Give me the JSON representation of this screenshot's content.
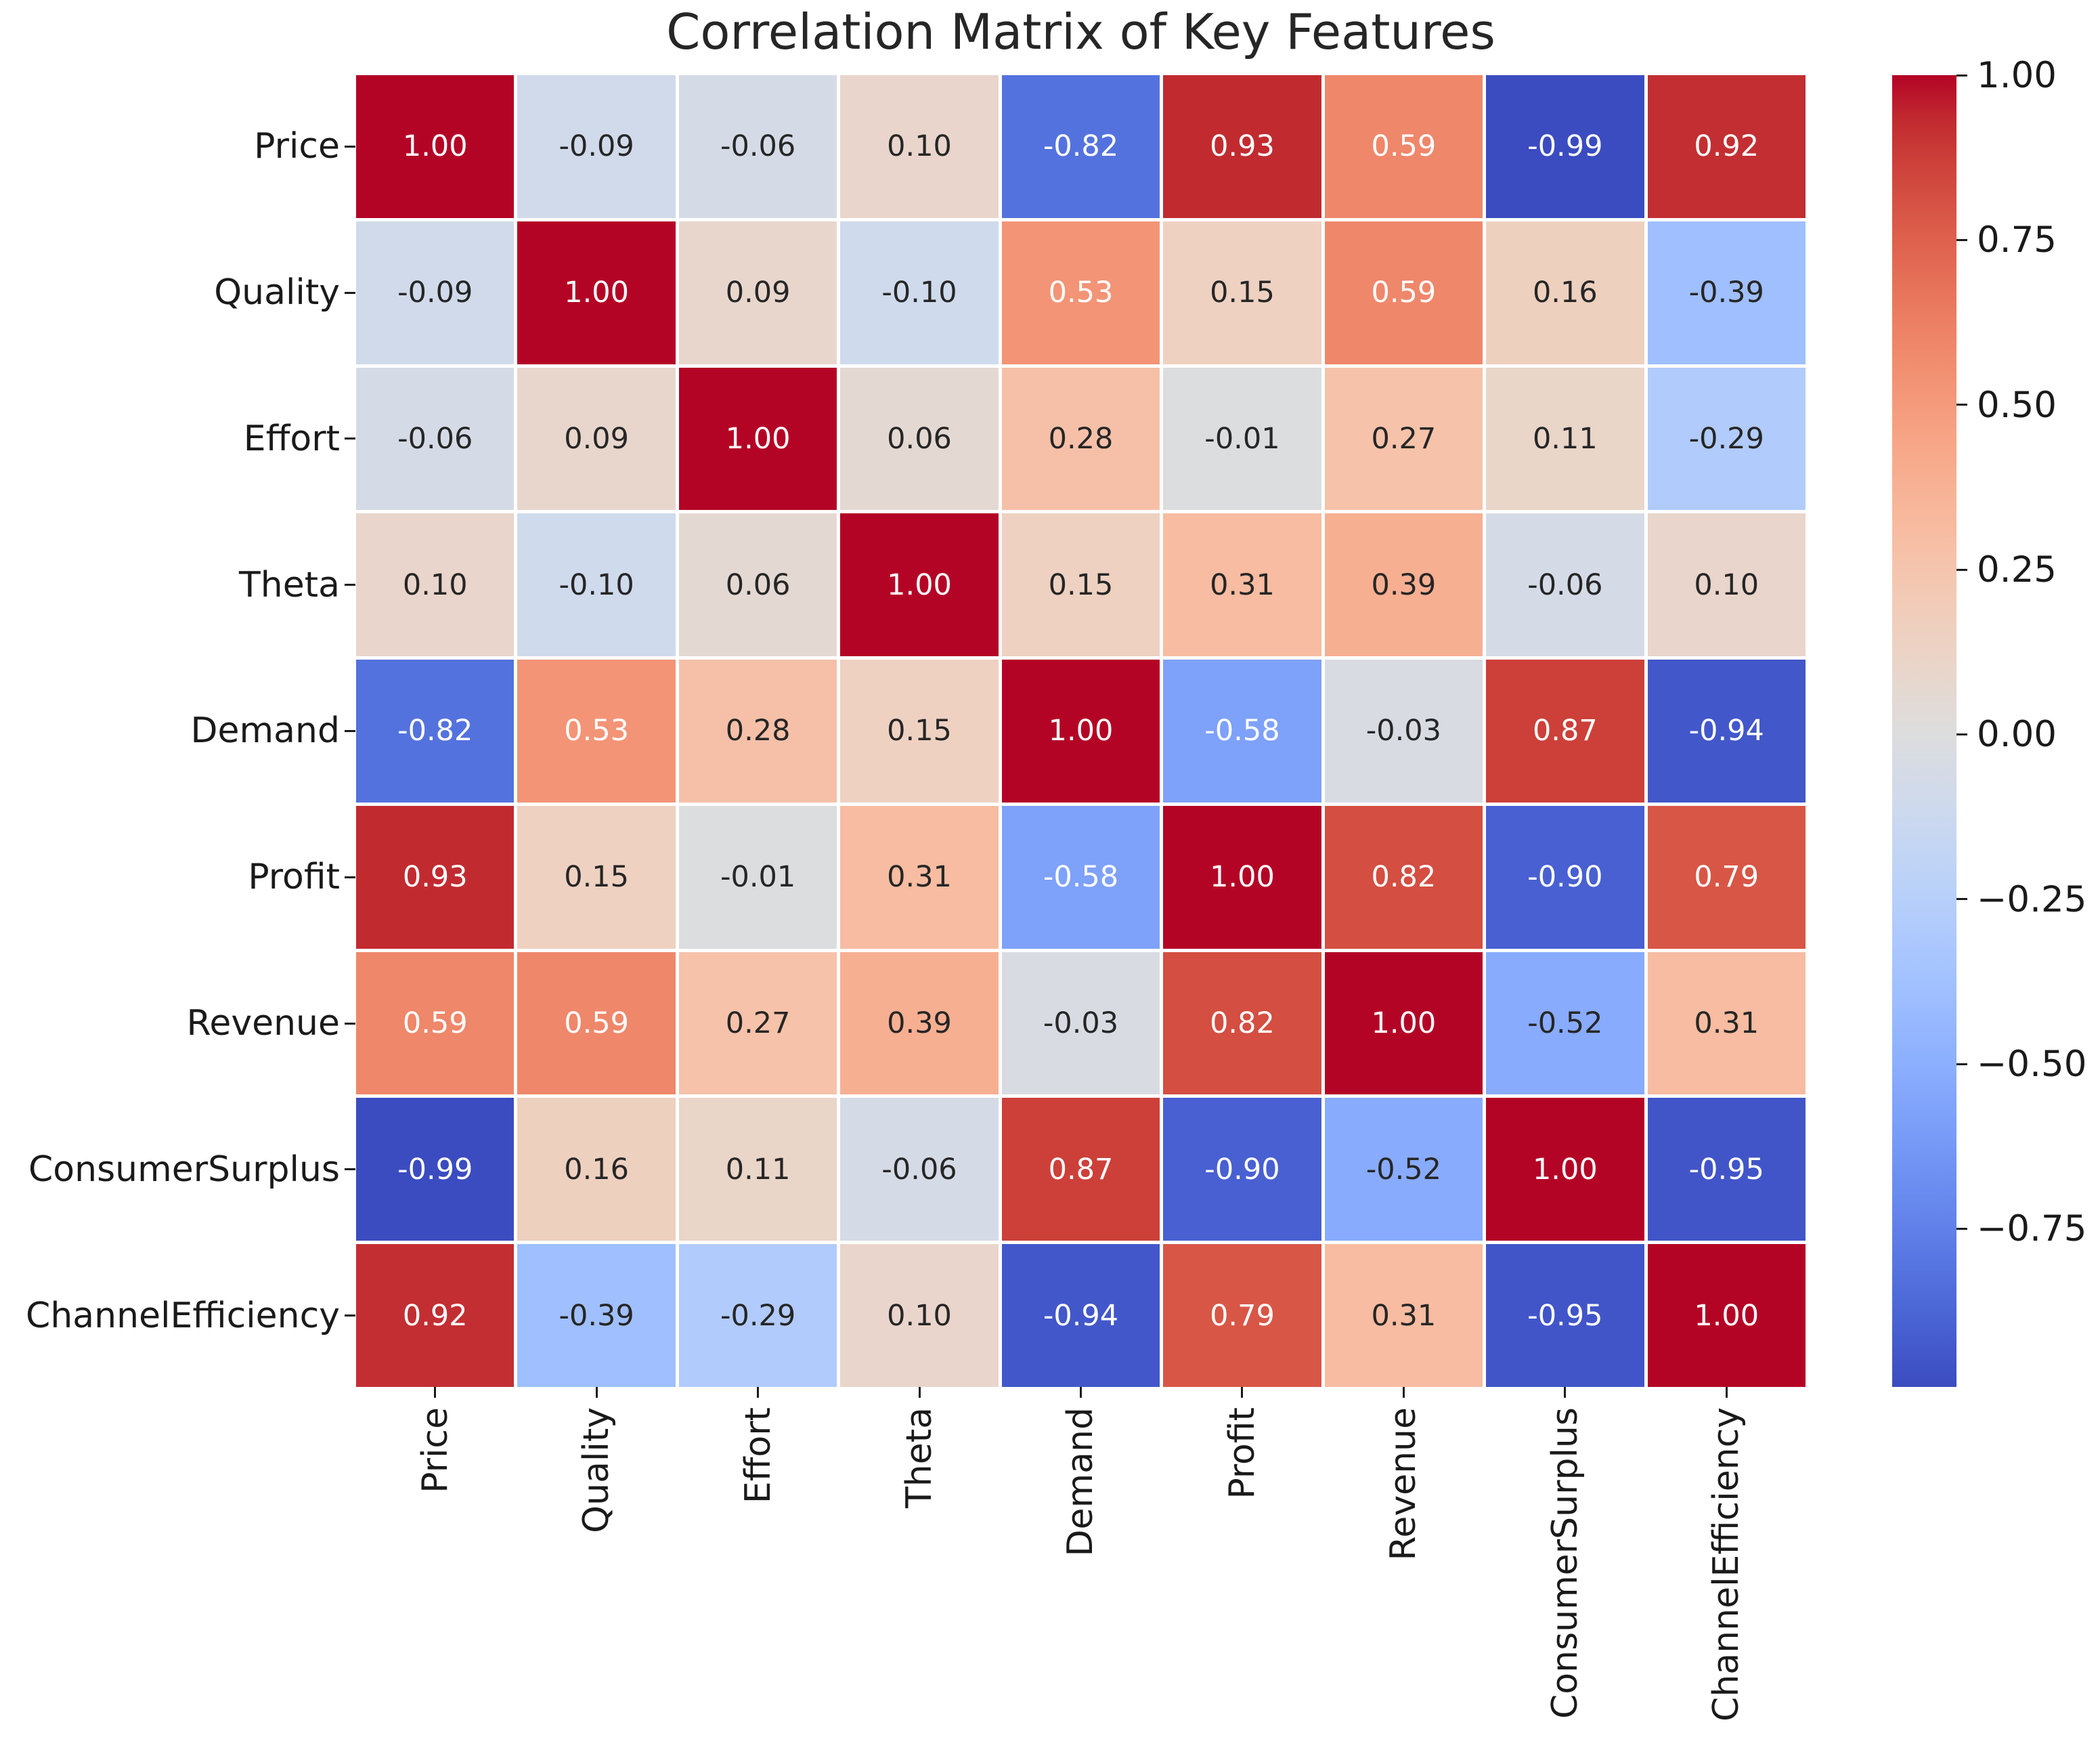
{
  "title": "Correlation Matrix of Key Features",
  "chart_data": {
    "type": "heatmap",
    "title": "Correlation Matrix of Key Features",
    "categories": [
      "Price",
      "Quality",
      "Effort",
      "Theta",
      "Demand",
      "Profit",
      "Revenue",
      "ConsumerSurplus",
      "ChannelEfficiency"
    ],
    "matrix": [
      [
        1.0,
        -0.09,
        -0.06,
        0.1,
        -0.82,
        0.93,
        0.59,
        -0.99,
        0.92
      ],
      [
        -0.09,
        1.0,
        0.09,
        -0.1,
        0.53,
        0.15,
        0.59,
        0.16,
        -0.39
      ],
      [
        -0.06,
        0.09,
        1.0,
        0.06,
        0.28,
        -0.01,
        0.27,
        0.11,
        -0.29
      ],
      [
        0.1,
        -0.1,
        0.06,
        1.0,
        0.15,
        0.31,
        0.39,
        -0.06,
        0.1
      ],
      [
        -0.82,
        0.53,
        0.28,
        0.15,
        1.0,
        -0.58,
        -0.03,
        0.87,
        -0.94
      ],
      [
        0.93,
        0.15,
        -0.01,
        0.31,
        -0.58,
        1.0,
        0.82,
        -0.9,
        0.79
      ],
      [
        0.59,
        0.59,
        0.27,
        0.39,
        -0.03,
        0.82,
        1.0,
        -0.52,
        0.31
      ],
      [
        -0.99,
        0.16,
        0.11,
        -0.06,
        0.87,
        -0.9,
        -0.52,
        1.0,
        -0.95
      ],
      [
        0.92,
        -0.39,
        -0.29,
        0.1,
        -0.94,
        0.79,
        0.31,
        -0.95,
        1.0
      ]
    ],
    "value_format": "two_decimals",
    "colormap": "coolwarm",
    "vmin": -0.99,
    "vmax": 1.0,
    "grid": false,
    "legend_position": "right-colorbar",
    "colorbar_ticks": [
      {
        "value": 1.0,
        "label": "1.00"
      },
      {
        "value": 0.75,
        "label": "0.75"
      },
      {
        "value": 0.5,
        "label": "0.50"
      },
      {
        "value": 0.25,
        "label": "0.25"
      },
      {
        "value": 0.0,
        "label": "0.00"
      },
      {
        "value": -0.25,
        "label": "−0.25"
      },
      {
        "value": -0.5,
        "label": "−0.50"
      },
      {
        "value": -0.75,
        "label": "−0.75"
      }
    ],
    "colors": {
      "max": "#b40426",
      "mid": "#dddddd",
      "min": "#3b4cc0",
      "cell_text_light": "#ffffff",
      "cell_text_dark": "#262626",
      "axis_text": "#1a1a1a"
    }
  }
}
